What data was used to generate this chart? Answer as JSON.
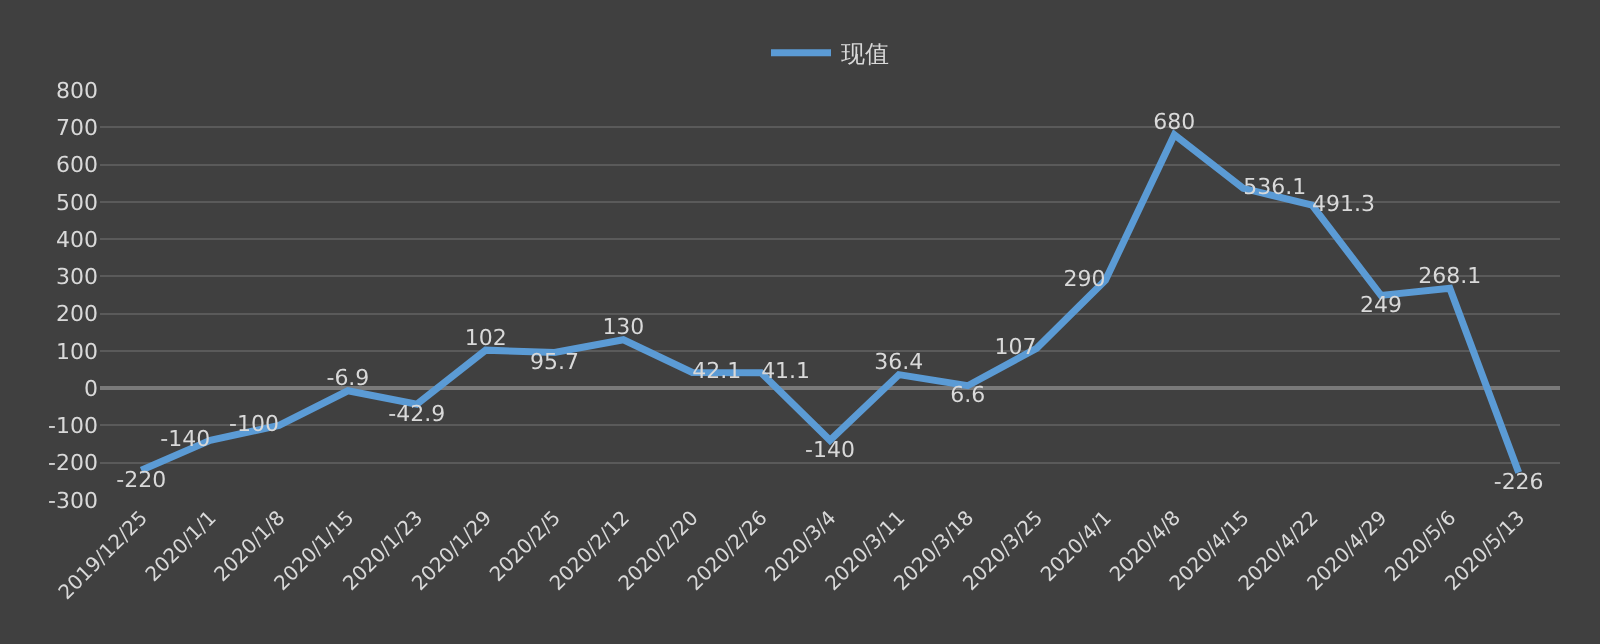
{
  "chart_data": {
    "type": "line",
    "categories": [
      "2019/12/25",
      "2020/1/1",
      "2020/1/8",
      "2020/1/15",
      "2020/1/23",
      "2020/1/29",
      "2020/2/5",
      "2020/2/12",
      "2020/2/20",
      "2020/2/26",
      "2020/3/4",
      "2020/3/11",
      "2020/3/18",
      "2020/3/25",
      "2020/4/1",
      "2020/4/8",
      "2020/4/15",
      "2020/4/22",
      "2020/4/29",
      "2020/5/6",
      "2020/5/13"
    ],
    "series": [
      {
        "name": "现值",
        "color": "#5b9bd5",
        "values": [
          -220,
          -140,
          -100,
          -6.9,
          -42.9,
          102,
          95.7,
          130,
          42.1,
          41.1,
          -140,
          36.4,
          6.6,
          107,
          290,
          680,
          536.1,
          491.3,
          249,
          268.1,
          -226
        ]
      }
    ],
    "ylim": [
      -300,
      800
    ],
    "yticks": [
      -300,
      -200,
      -100,
      0,
      100,
      200,
      300,
      400,
      500,
      600,
      700,
      800
    ],
    "grid": "y",
    "legend": "top",
    "data_labels": true,
    "marker": "none",
    "line_style": "solid"
  }
}
